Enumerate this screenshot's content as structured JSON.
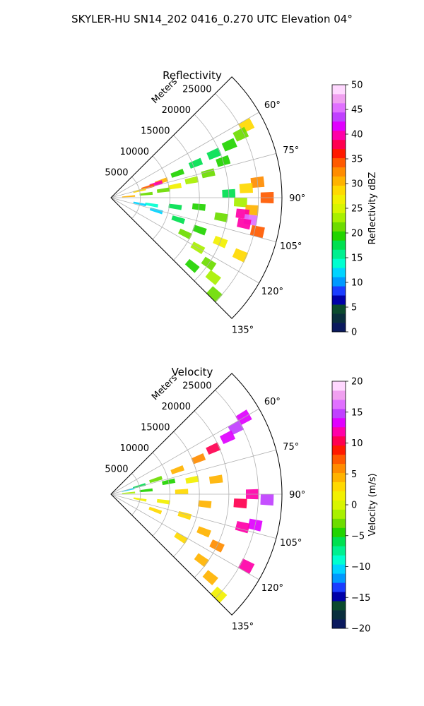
{
  "figure": {
    "suptitle": "SKYLER-HU  SN14_202  0416_0.270 UTC Elevation 04°"
  },
  "chart_data": [
    {
      "type": "heatmap",
      "subtype": "polar-sector (radar PPI)",
      "title": "Reflectivity",
      "radial_axis_label": "Meters",
      "radial_ticks": [
        5000,
        10000,
        15000,
        20000,
        25000
      ],
      "radial_tick_labels": [
        "5000",
        "10000",
        "15000",
        "20000",
        "25000"
      ],
      "radial_range": [
        0,
        29000
      ],
      "azimuth_ticks": [
        60,
        75,
        90,
        105,
        120,
        135
      ],
      "azimuth_tick_labels": [
        "60°",
        "75°",
        "90°",
        "105°",
        "120°",
        "135°"
      ],
      "azimuth_range": [
        45,
        135
      ],
      "grid": true,
      "colorbar": {
        "label": "Reflectivity dBZ",
        "range": [
          0,
          50
        ],
        "ticks": [
          0,
          5,
          10,
          15,
          20,
          25,
          30,
          35,
          40,
          45,
          50
        ],
        "tick_labels": [
          "0",
          "5",
          "10",
          "15",
          "20",
          "25",
          "30",
          "35",
          "40",
          "45",
          "50"
        ],
        "colors": [
          "#0b1a5e",
          "#0a2f3d",
          "#0b4a2e",
          "#0000a8",
          "#1a3dff",
          "#0099ff",
          "#00d4ff",
          "#00ffd0",
          "#00f090",
          "#00e050",
          "#22d400",
          "#6ddc00",
          "#a8f000",
          "#d8f500",
          "#f2f000",
          "#ffd900",
          "#ffb300",
          "#ff8c00",
          "#ff5a00",
          "#ff1a00",
          "#ff0050",
          "#ff00a8",
          "#e000ff",
          "#c040ff",
          "#e070ff",
          "#f0a0f0",
          "#ffd8ff"
        ]
      },
      "cells": [
        {
          "az": 62,
          "r": 26000,
          "v": 28
        },
        {
          "az": 64,
          "r": 24500,
          "v": 22
        },
        {
          "az": 66,
          "r": 22000,
          "v": 20
        },
        {
          "az": 67,
          "r": 19000,
          "v": 18
        },
        {
          "az": 68,
          "r": 15500,
          "v": 18
        },
        {
          "az": 70,
          "r": 12000,
          "v": 20
        },
        {
          "az": 72,
          "r": 9000,
          "v": 30
        },
        {
          "az": 73,
          "r": 8000,
          "v": 40
        },
        {
          "az": 74,
          "r": 6500,
          "v": 35
        },
        {
          "az": 76,
          "r": 5000,
          "v": 28
        },
        {
          "az": 72,
          "r": 20000,
          "v": 20
        },
        {
          "az": 76,
          "r": 17000,
          "v": 22
        },
        {
          "az": 78,
          "r": 14000,
          "v": 24
        },
        {
          "az": 80,
          "r": 11000,
          "v": 26
        },
        {
          "az": 82,
          "r": 9000,
          "v": 22
        },
        {
          "az": 84,
          "r": 6000,
          "v": 22
        },
        {
          "az": 86,
          "r": 3000,
          "v": 30
        },
        {
          "az": 84,
          "r": 25000,
          "v": 32
        },
        {
          "az": 86,
          "r": 23000,
          "v": 28
        },
        {
          "az": 88,
          "r": 20000,
          "v": 18
        },
        {
          "az": 90,
          "r": 26500,
          "v": 35
        },
        {
          "az": 92,
          "r": 22000,
          "v": 24
        },
        {
          "az": 95,
          "r": 24000,
          "v": 30
        },
        {
          "az": 97,
          "r": 22500,
          "v": 40
        },
        {
          "az": 99,
          "r": 24000,
          "v": 45
        },
        {
          "az": 101,
          "r": 23000,
          "v": 40
        },
        {
          "az": 103,
          "r": 25500,
          "v": 35
        },
        {
          "az": 100,
          "r": 19000,
          "v": 22
        },
        {
          "az": 96,
          "r": 15000,
          "v": 20
        },
        {
          "az": 98,
          "r": 11000,
          "v": 18
        },
        {
          "az": 100,
          "r": 7000,
          "v": 14
        },
        {
          "az": 102,
          "r": 5000,
          "v": 12
        },
        {
          "az": 106,
          "r": 8000,
          "v": 12
        },
        {
          "az": 108,
          "r": 12000,
          "v": 18
        },
        {
          "az": 110,
          "r": 16000,
          "v": 20
        },
        {
          "az": 112,
          "r": 20000,
          "v": 26
        },
        {
          "az": 114,
          "r": 24000,
          "v": 28
        },
        {
          "az": 116,
          "r": 14000,
          "v": 22
        },
        {
          "az": 120,
          "r": 17000,
          "v": 24
        },
        {
          "az": 124,
          "r": 20000,
          "v": 22
        },
        {
          "az": 128,
          "r": 22000,
          "v": 24
        },
        {
          "az": 130,
          "r": 18000,
          "v": 20
        },
        {
          "az": 133,
          "r": 24000,
          "v": 22
        }
      ]
    },
    {
      "type": "heatmap",
      "subtype": "polar-sector (radar PPI)",
      "title": "Velocity",
      "radial_axis_label": "Meters",
      "radial_ticks": [
        5000,
        10000,
        15000,
        20000,
        25000
      ],
      "radial_tick_labels": [
        "5000",
        "10000",
        "15000",
        "20000",
        "25000"
      ],
      "radial_range": [
        0,
        29000
      ],
      "azimuth_ticks": [
        60,
        75,
        90,
        105,
        120,
        135
      ],
      "azimuth_tick_labels": [
        "60°",
        "75°",
        "90°",
        "105°",
        "120°",
        "135°"
      ],
      "azimuth_range": [
        45,
        135
      ],
      "grid": true,
      "colorbar": {
        "label": "Velocity (m/s)",
        "range": [
          -20,
          20
        ],
        "ticks": [
          -20,
          -15,
          -10,
          -5,
          0,
          5,
          10,
          15,
          20
        ],
        "tick_labels": [
          "−20",
          "−15",
          "−10",
          "−5",
          "0",
          "5",
          "10",
          "15",
          "20"
        ],
        "colors": [
          "#0b1a5e",
          "#0a2f3d",
          "#0b4a2e",
          "#0000a8",
          "#1a3dff",
          "#0099ff",
          "#00d4ff",
          "#00ffd0",
          "#00f090",
          "#00e050",
          "#22d400",
          "#6ddc00",
          "#a8f000",
          "#d8f500",
          "#f2f000",
          "#ffd900",
          "#ffb300",
          "#ff8c00",
          "#ff5a00",
          "#ff1a00",
          "#ff0050",
          "#ff00a8",
          "#e000ff",
          "#c040ff",
          "#e070ff",
          "#f0a0f0",
          "#ffd8ff"
        ]
      },
      "cells": [
        {
          "az": 60,
          "r": 26000,
          "v": 14
        },
        {
          "az": 62,
          "r": 24000,
          "v": 15
        },
        {
          "az": 64,
          "r": 22000,
          "v": 13
        },
        {
          "az": 66,
          "r": 19000,
          "v": 10
        },
        {
          "az": 68,
          "r": 16000,
          "v": 6
        },
        {
          "az": 70,
          "r": 12000,
          "v": 4
        },
        {
          "az": 72,
          "r": 8000,
          "v": -3
        },
        {
          "az": 74,
          "r": 5000,
          "v": -6
        },
        {
          "az": 76,
          "r": 3000,
          "v": -11
        },
        {
          "az": 78,
          "r": 10000,
          "v": -4
        },
        {
          "az": 80,
          "r": 14000,
          "v": 2
        },
        {
          "az": 82,
          "r": 18000,
          "v": 4
        },
        {
          "az": 84,
          "r": 6000,
          "v": -5
        },
        {
          "az": 86,
          "r": 3000,
          "v": -2
        },
        {
          "az": 88,
          "r": 12000,
          "v": 3
        },
        {
          "az": 90,
          "r": 24000,
          "v": 12
        },
        {
          "az": 92,
          "r": 26500,
          "v": 15
        },
        {
          "az": 94,
          "r": 22000,
          "v": 11
        },
        {
          "az": 96,
          "r": 16000,
          "v": 4
        },
        {
          "az": 98,
          "r": 9000,
          "v": 2
        },
        {
          "az": 100,
          "r": 5000,
          "v": 1
        },
        {
          "az": 102,
          "r": 25000,
          "v": 14
        },
        {
          "az": 104,
          "r": 23000,
          "v": 12
        },
        {
          "az": 106,
          "r": 13000,
          "v": 3
        },
        {
          "az": 110,
          "r": 8000,
          "v": 3
        },
        {
          "az": 112,
          "r": 17000,
          "v": 5
        },
        {
          "az": 116,
          "r": 20000,
          "v": 6
        },
        {
          "az": 118,
          "r": 26000,
          "v": 12
        },
        {
          "az": 122,
          "r": 14000,
          "v": 3
        },
        {
          "az": 126,
          "r": 19000,
          "v": 5
        },
        {
          "az": 130,
          "r": 22000,
          "v": 4
        },
        {
          "az": 133,
          "r": 25000,
          "v": 2
        }
      ]
    }
  ]
}
